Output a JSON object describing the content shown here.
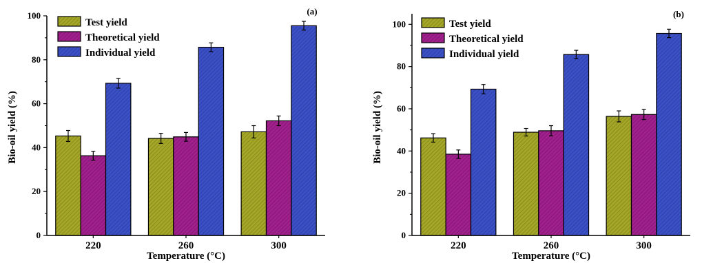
{
  "chart_data": [
    {
      "type": "bar",
      "panel_tag": "(a)",
      "xlabel": "Temperature (°C)",
      "ylabel": "Bio-oil yield (%)",
      "categories": [
        "220",
        "260",
        "300"
      ],
      "ylim": [
        0,
        100
      ],
      "yticks": [
        "0",
        "20",
        "40",
        "60",
        "80",
        "100"
      ],
      "legend_position": "top-left",
      "series": [
        {
          "name": "Test yield",
          "values": [
            45.3,
            44.2,
            47.2
          ],
          "errors": [
            2.5,
            2.3,
            2.8
          ],
          "color": "#a4a62a"
        },
        {
          "name": "Theoretical yield",
          "values": [
            36.3,
            44.9,
            52.2
          ],
          "errors": [
            2.0,
            2.0,
            2.2
          ],
          "color": "#a0208c"
        },
        {
          "name": "Individual yield",
          "values": [
            69.3,
            85.7,
            95.5
          ],
          "errors": [
            2.2,
            2.0,
            2.0
          ],
          "color": "#3b50c4"
        }
      ]
    },
    {
      "type": "bar",
      "panel_tag": "(b)",
      "xlabel": "Temperature (°C)",
      "ylabel": "Bio-oil yield (%)",
      "categories": [
        "220",
        "260",
        "300"
      ],
      "ylim": [
        0,
        105
      ],
      "yticks": [
        "0",
        "20",
        "40",
        "60",
        "80",
        "100"
      ],
      "legend_position": "top-left",
      "series": [
        {
          "name": "Test yield",
          "values": [
            46.2,
            48.9,
            56.4
          ],
          "errors": [
            2.0,
            1.8,
            2.6
          ],
          "color": "#a4a62a"
        },
        {
          "name": "Theoretical yield",
          "values": [
            38.5,
            49.6,
            57.3
          ],
          "errors": [
            2.0,
            2.4,
            2.4
          ],
          "color": "#a0208c"
        },
        {
          "name": "Individual yield",
          "values": [
            69.3,
            85.7,
            95.7
          ],
          "errors": [
            2.2,
            2.0,
            2.0
          ],
          "color": "#3b50c4"
        }
      ]
    }
  ]
}
